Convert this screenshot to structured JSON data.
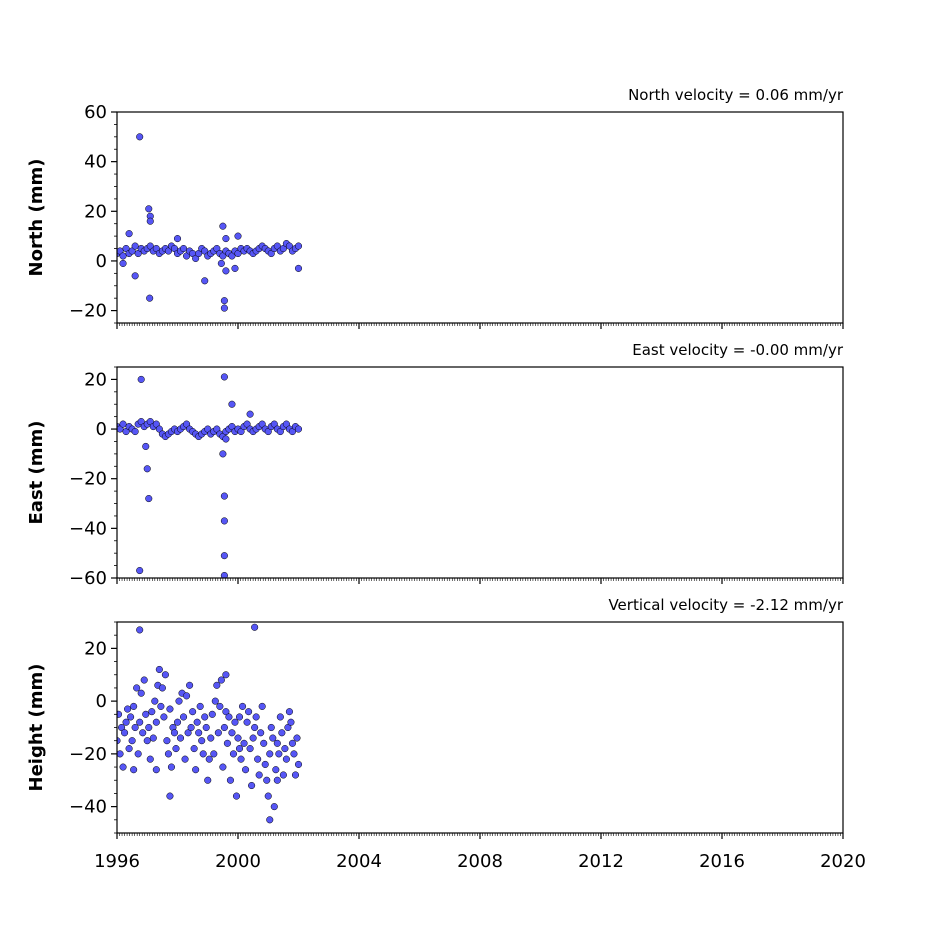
{
  "chart_data": [
    {
      "type": "scatter",
      "title": "North velocity = 0.06 mm/yr",
      "ylabel": "North (mm)",
      "xlim": [
        1996,
        2020
      ],
      "ylim": [
        -25,
        60
      ],
      "yticks": [
        -20,
        0,
        20,
        40,
        60
      ],
      "xticks": [
        1996,
        2000,
        2004,
        2008,
        2012,
        2016,
        2020
      ],
      "show_xtick_labels": false,
      "marker_color": "#5656f5",
      "marker_edge_color": "#000000",
      "series": [
        {
          "x": [
            1996.0,
            1996.1,
            1996.2,
            1996.3,
            1996.4,
            1996.5,
            1996.6,
            1996.7,
            1996.8,
            1996.9,
            1997.0,
            1997.1,
            1997.2,
            1997.3,
            1997.4,
            1997.5,
            1997.6,
            1997.7,
            1997.8,
            1997.9,
            1998.0,
            1998.1,
            1998.2,
            1998.3,
            1998.4,
            1998.5,
            1998.6,
            1998.7,
            1998.8,
            1998.9,
            1999.0,
            1999.1,
            1999.2,
            1999.3,
            1999.4,
            1999.5,
            1999.6,
            1999.7,
            1999.8,
            1999.9,
            2000.0,
            2000.1,
            2000.2,
            2000.3,
            2000.4,
            2000.5,
            2000.6,
            2000.7,
            2000.8,
            2000.9,
            2001.0,
            2001.1,
            2001.2,
            2001.3,
            2001.4,
            2001.5,
            2001.6,
            2001.7,
            2001.8,
            2001.9,
            2002.0,
            1996.75,
            1997.05,
            1997.1,
            1997.08,
            1996.4,
            1996.6,
            1997.1,
            1998.9,
            1999.55,
            1999.55,
            1999.5,
            1999.6,
            1999.6,
            1999.9,
            2000.0,
            1996.2,
            2002.0,
            1998.0,
            1999.45
          ],
          "y": [
            3,
            4,
            2,
            5,
            3,
            4,
            6,
            3,
            5,
            4,
            5,
            6,
            4,
            5,
            3,
            4,
            5,
            4,
            6,
            5,
            3,
            4,
            5,
            2,
            4,
            3,
            1,
            3,
            5,
            4,
            2,
            3,
            4,
            5,
            3,
            2,
            4,
            3,
            2,
            4,
            3,
            5,
            4,
            5,
            4,
            3,
            4,
            5,
            6,
            5,
            4,
            3,
            5,
            6,
            4,
            5,
            7,
            6,
            4,
            5,
            6,
            50,
            21,
            18,
            -15,
            11,
            -6,
            16,
            -8,
            -16,
            -19,
            14,
            -4,
            9,
            -3,
            10,
            -1,
            -3,
            9,
            -1
          ]
        }
      ]
    },
    {
      "type": "scatter",
      "title": "East velocity = -0.00 mm/yr",
      "ylabel": "East (mm)",
      "xlim": [
        1996,
        2020
      ],
      "ylim": [
        -60,
        25
      ],
      "yticks": [
        -60,
        -40,
        -20,
        0,
        20
      ],
      "xticks": [
        1996,
        2000,
        2004,
        2008,
        2012,
        2016,
        2020
      ],
      "show_xtick_labels": false,
      "marker_color": "#5656f5",
      "marker_edge_color": "#000000",
      "series": [
        {
          "x": [
            1996.0,
            1996.1,
            1996.2,
            1996.3,
            1996.4,
            1996.5,
            1996.6,
            1996.7,
            1996.8,
            1996.9,
            1997.0,
            1997.1,
            1997.2,
            1997.3,
            1997.4,
            1997.5,
            1997.6,
            1997.7,
            1997.8,
            1997.9,
            1998.0,
            1998.1,
            1998.2,
            1998.3,
            1998.4,
            1998.5,
            1998.6,
            1998.7,
            1998.8,
            1998.9,
            1999.0,
            1999.1,
            1999.2,
            1999.3,
            1999.4,
            1999.5,
            1999.6,
            1999.7,
            1999.8,
            1999.9,
            2000.0,
            2000.1,
            2000.2,
            2000.3,
            2000.4,
            2000.5,
            2000.6,
            2000.7,
            2000.8,
            2000.9,
            2001.0,
            2001.1,
            2001.2,
            2001.3,
            2001.4,
            2001.5,
            2001.6,
            2001.7,
            2001.8,
            2001.9,
            2002.0,
            1996.8,
            1997.0,
            1997.05,
            1996.75,
            1999.55,
            1999.55,
            1999.55,
            1999.55,
            1999.55,
            1999.8,
            2000.4,
            1999.5,
            1996.95,
            1999.6
          ],
          "y": [
            1,
            0,
            2,
            -1,
            1,
            0,
            -1,
            2,
            3,
            1,
            2,
            3,
            1,
            2,
            0,
            -2,
            -3,
            -2,
            -1,
            0,
            -1,
            0,
            1,
            2,
            0,
            -1,
            -2,
            -3,
            -2,
            -1,
            0,
            -2,
            -1,
            0,
            -2,
            -3,
            -1,
            0,
            1,
            -1,
            0,
            -1,
            1,
            2,
            0,
            -1,
            0,
            1,
            2,
            0,
            -1,
            1,
            2,
            0,
            -1,
            1,
            2,
            0,
            -1,
            1,
            0,
            20,
            -16,
            -28,
            -57,
            21,
            -27,
            -37,
            -51,
            -59,
            10,
            6,
            -10,
            -7,
            -4
          ]
        }
      ]
    },
    {
      "type": "scatter",
      "title": "Vertical velocity = -2.12 mm/yr",
      "ylabel": "Height (mm)",
      "xlim": [
        1996,
        2020
      ],
      "ylim": [
        -50,
        30
      ],
      "yticks": [
        -40,
        -20,
        0,
        20
      ],
      "xticks": [
        1996,
        2000,
        2004,
        2008,
        2012,
        2016,
        2020
      ],
      "xtick_labels": [
        "1996",
        "2000",
        "2004",
        "2008",
        "2012",
        "2016",
        "2020"
      ],
      "show_xtick_labels": true,
      "marker_color": "#5656f5",
      "marker_edge_color": "#000000",
      "series": [
        {
          "x": [
            1996.0,
            1996.05,
            1996.1,
            1996.15,
            1996.2,
            1996.25,
            1996.3,
            1996.35,
            1996.4,
            1996.45,
            1996.5,
            1996.55,
            1996.6,
            1996.65,
            1996.7,
            1996.75,
            1996.8,
            1996.85,
            1996.9,
            1996.95,
            1997.0,
            1997.05,
            1997.1,
            1997.15,
            1997.2,
            1997.25,
            1997.3,
            1997.35,
            1997.4,
            1997.45,
            1997.5,
            1997.55,
            1997.6,
            1997.65,
            1997.7,
            1997.75,
            1997.8,
            1997.85,
            1997.9,
            1997.95,
            1998.0,
            1998.05,
            1998.1,
            1998.15,
            1998.2,
            1998.25,
            1998.3,
            1998.35,
            1998.4,
            1998.45,
            1998.5,
            1998.55,
            1998.6,
            1998.65,
            1998.7,
            1998.75,
            1998.8,
            1998.85,
            1998.9,
            1998.95,
            1999.0,
            1999.05,
            1999.1,
            1999.15,
            1999.2,
            1999.25,
            1999.3,
            1999.35,
            1999.4,
            1999.45,
            1999.5,
            1999.55,
            1999.6,
            1999.65,
            1999.7,
            1999.75,
            1999.8,
            1999.85,
            1999.9,
            1999.95,
            2000.0,
            2000.05,
            2000.1,
            2000.15,
            2000.2,
            2000.25,
            2000.3,
            2000.35,
            2000.4,
            2000.45,
            2000.5,
            2000.55,
            2000.6,
            2000.65,
            2000.7,
            2000.75,
            2000.8,
            2000.85,
            2000.9,
            2000.95,
            2001.0,
            2001.05,
            2001.1,
            2001.15,
            2001.2,
            2001.25,
            2001.3,
            2001.35,
            2001.4,
            2001.45,
            2001.5,
            2001.55,
            2001.6,
            2001.65,
            2001.7,
            2001.75,
            2001.8,
            2001.85,
            2001.9,
            2001.95,
            2002.0,
            1996.75,
            2000.55,
            1997.75,
            2001.05,
            1996.55,
            1997.3,
            1999.6,
            2000.05,
            2001.3
          ],
          "y": [
            -15,
            -5,
            -20,
            -10,
            -25,
            -12,
            -8,
            -3,
            -18,
            -6,
            -15,
            -2,
            -10,
            5,
            -20,
            -8,
            3,
            -12,
            8,
            -5,
            -15,
            -10,
            -22,
            -4,
            -14,
            0,
            -8,
            6,
            12,
            -2,
            5,
            -6,
            10,
            -15,
            -20,
            -3,
            -25,
            -10,
            -12,
            -18,
            -8,
            0,
            -14,
            3,
            -6,
            -22,
            2,
            -12,
            6,
            -10,
            -4,
            -18,
            -26,
            -8,
            -12,
            -2,
            -15,
            -20,
            -6,
            -10,
            -30,
            -22,
            -14,
            -5,
            -20,
            0,
            6,
            -12,
            -2,
            8,
            -25,
            -10,
            -4,
            -16,
            -6,
            -30,
            -12,
            -20,
            -8,
            -36,
            -14,
            -6,
            -22,
            -2,
            -16,
            -26,
            -8,
            -4,
            -18,
            -32,
            -14,
            -10,
            -6,
            -22,
            -28,
            -12,
            -2,
            -16,
            -24,
            -30,
            -36,
            -20,
            -10,
            -14,
            -40,
            -26,
            -16,
            -20,
            -6,
            -12,
            -28,
            -18,
            -22,
            -10,
            -4,
            -8,
            -16,
            -20,
            -28,
            -14,
            -24,
            27,
            28,
            -36,
            -45,
            -26,
            -26,
            10,
            -18,
            -30
          ]
        }
      ]
    }
  ]
}
